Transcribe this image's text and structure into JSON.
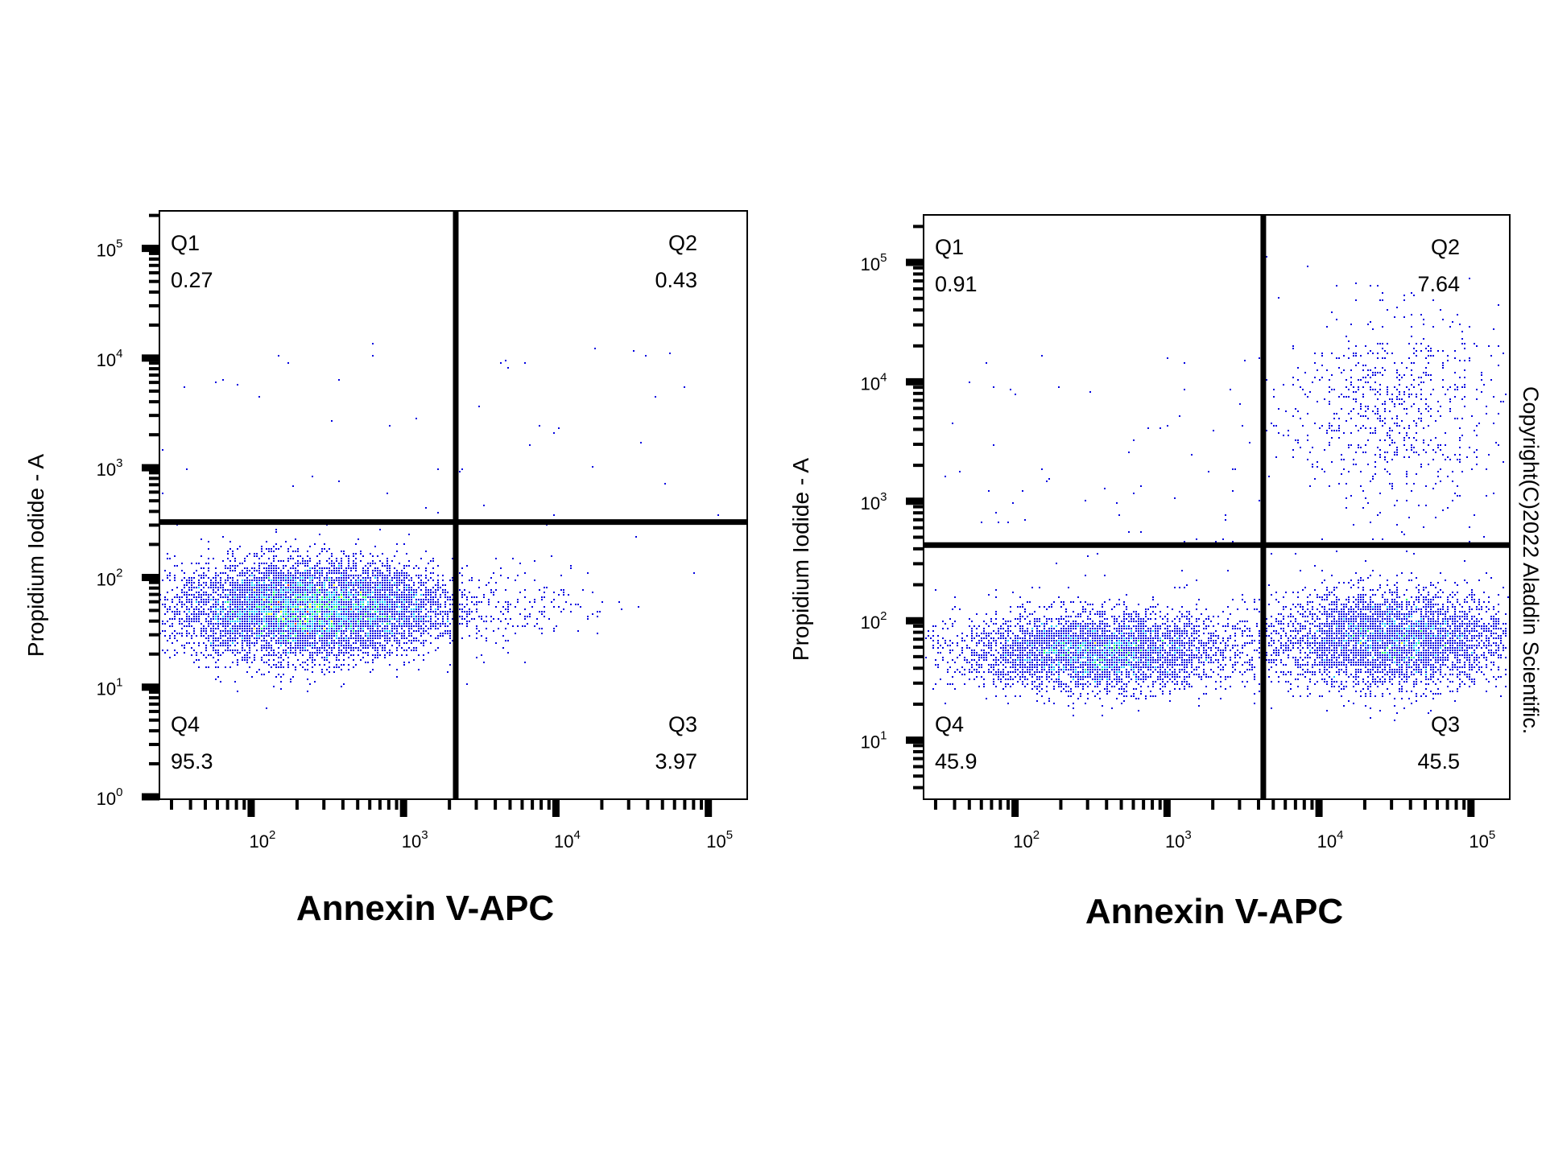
{
  "copyright": "Copyright(C)2022 Aladdin Scientific.",
  "colors": {
    "density_low": "#0000e0",
    "density_mid_low": "#00c8ff",
    "density_mid": "#00ff60",
    "density_mid_high": "#ffff00",
    "density_high": "#ff2000",
    "faint": "#c8c8f0",
    "gate": "#000000"
  },
  "chart_data": [
    {
      "type": "scatter",
      "xlabel": "Annexin V-APC",
      "ylabel": "Propidium Iodide - A",
      "xscale": "log",
      "yscale": "log",
      "xlim": [
        25,
        180000
      ],
      "ylim": [
        0.95,
        220000
      ],
      "x_ticks": [
        {
          "base": "10",
          "exp": "2"
        },
        {
          "base": "10",
          "exp": "3"
        },
        {
          "base": "10",
          "exp": "4"
        },
        {
          "base": "10",
          "exp": "5"
        }
      ],
      "y_ticks": [
        {
          "base": "10",
          "exp": "0"
        },
        {
          "base": "10",
          "exp": "1"
        },
        {
          "base": "10",
          "exp": "2"
        },
        {
          "base": "10",
          "exp": "3"
        },
        {
          "base": "10",
          "exp": "4"
        },
        {
          "base": "10",
          "exp": "5"
        }
      ],
      "gate": {
        "x": 2200,
        "y": 320
      },
      "quadrants": [
        {
          "name": "Q1",
          "value": "0.27",
          "position": "top-left"
        },
        {
          "name": "Q2",
          "value": "0.43",
          "position": "top-right"
        },
        {
          "name": "Q3",
          "value": "3.97",
          "position": "bottom-right"
        },
        {
          "name": "Q4",
          "value": "95.3",
          "position": "bottom-left"
        }
      ],
      "populations": [
        {
          "cx": 220,
          "cy": 50,
          "sx_decades": 0.42,
          "sy_decades": 0.22,
          "n": 7000
        },
        {
          "cx": 900,
          "cy": 55,
          "sx_decades": 0.25,
          "sy_decades": 0.18,
          "n": 600
        },
        {
          "cx": 6000,
          "cy": 60,
          "sx_decades": 0.3,
          "sy_decades": 0.18,
          "n": 170
        }
      ],
      "sparse_points": 60
    },
    {
      "type": "scatter",
      "xlabel": "Annexin V-APC",
      "ylabel": "Propidium Iodide - A",
      "xscale": "log",
      "yscale": "log",
      "xlim": [
        25,
        180000
      ],
      "ylim": [
        3.2,
        250000
      ],
      "x_ticks": [
        {
          "base": "10",
          "exp": "2"
        },
        {
          "base": "10",
          "exp": "3"
        },
        {
          "base": "10",
          "exp": "4"
        },
        {
          "base": "10",
          "exp": "5"
        }
      ],
      "y_ticks": [
        {
          "base": "10",
          "exp": "1"
        },
        {
          "base": "10",
          "exp": "2"
        },
        {
          "base": "10",
          "exp": "3"
        },
        {
          "base": "10",
          "exp": "4"
        },
        {
          "base": "10",
          "exp": "5"
        }
      ],
      "gate": {
        "x": 4300,
        "y": 430
      },
      "quadrants": [
        {
          "name": "Q1",
          "value": "0.91",
          "position": "top-left"
        },
        {
          "name": "Q2",
          "value": "7.64",
          "position": "top-right"
        },
        {
          "name": "Q3",
          "value": "45.5",
          "position": "bottom-right"
        },
        {
          "name": "Q4",
          "value": "45.9",
          "position": "bottom-left"
        }
      ],
      "populations": [
        {
          "cx": 350,
          "cy": 55,
          "sx_decades": 0.45,
          "sy_decades": 0.16,
          "n": 4200
        },
        {
          "cx": 30000,
          "cy": 70,
          "sx_decades": 0.4,
          "sy_decades": 0.2,
          "n": 4000
        },
        {
          "cx": 30000,
          "cy": 6000,
          "sx_decades": 0.35,
          "sy_decades": 0.4,
          "n": 700
        }
      ],
      "sparse_points": 120
    }
  ]
}
